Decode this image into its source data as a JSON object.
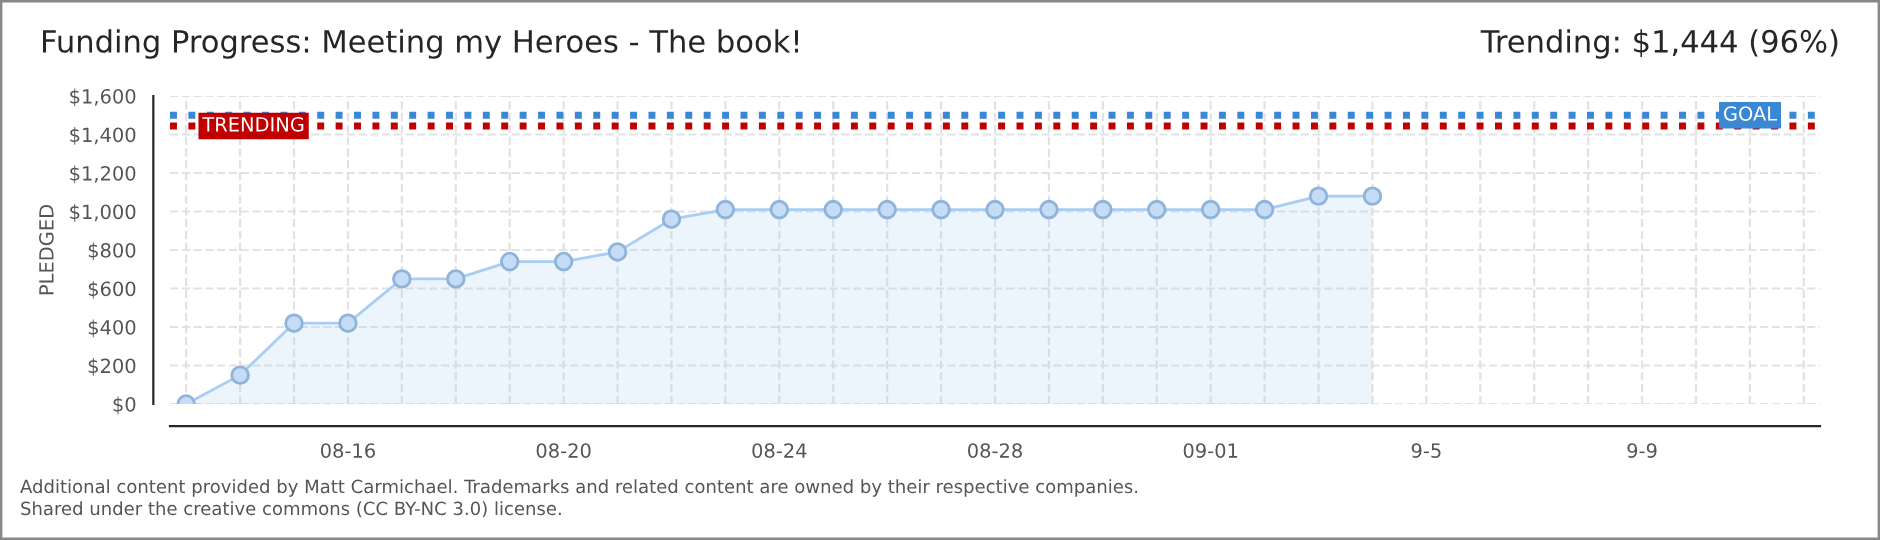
{
  "chart_data": {
    "type": "area",
    "title": "Funding Progress: Meeting my Heroes - The book!",
    "subtitle": "Trending: $1,444 (96%)",
    "ylabel": "PLEDGED",
    "categories": [
      null,
      null,
      null,
      "08-16",
      null,
      null,
      null,
      "08-20",
      null,
      null,
      null,
      "08-24",
      null,
      null,
      null,
      "08-28",
      null,
      null,
      null,
      "09-01",
      null,
      null,
      null,
      "9-5",
      null,
      null,
      null,
      "9-9",
      null,
      null,
      null
    ],
    "series": [
      {
        "color": "#a9cdf3",
        "values": [
          0,
          150,
          420,
          420,
          650,
          650,
          740,
          740,
          790,
          960,
          1010,
          1010,
          1010,
          1010,
          1010,
          1010,
          1010,
          1010,
          1010,
          1010,
          1010,
          1080,
          1080,
          null,
          null,
          null,
          null,
          null,
          null,
          null,
          null
        ]
      }
    ],
    "ylim": [
      0,
      1600
    ],
    "yticks": [
      {
        "value": 0,
        "label": "$0"
      },
      {
        "value": 200,
        "label": "$200"
      },
      {
        "value": 400,
        "label": "$400"
      },
      {
        "value": 600,
        "label": "$600"
      },
      {
        "value": 800,
        "label": "$800"
      },
      {
        "value": 1000,
        "label": "$1,000"
      },
      {
        "value": 1200,
        "label": "$1,200"
      },
      {
        "value": 1400,
        "label": "$1,400"
      },
      {
        "value": 1600,
        "label": "$1,600"
      }
    ],
    "ref_lines": [
      {
        "axis": "y",
        "value": 1500,
        "label": "GOAL",
        "color": "#3a87d6",
        "line_style": "dotted"
      },
      {
        "axis": "y",
        "value": 1444,
        "label": "TRENDING",
        "color": "#c00000",
        "line_style": "dotted"
      }
    ],
    "grid": true,
    "marker": "circle",
    "line_style": "solid",
    "annotations": [
      "Additional content provided by Matt Carmichael. Trademarks and related content are owned by their respective companies.",
      "Shared under the creative commons (CC BY-NC 3.0) license."
    ]
  }
}
